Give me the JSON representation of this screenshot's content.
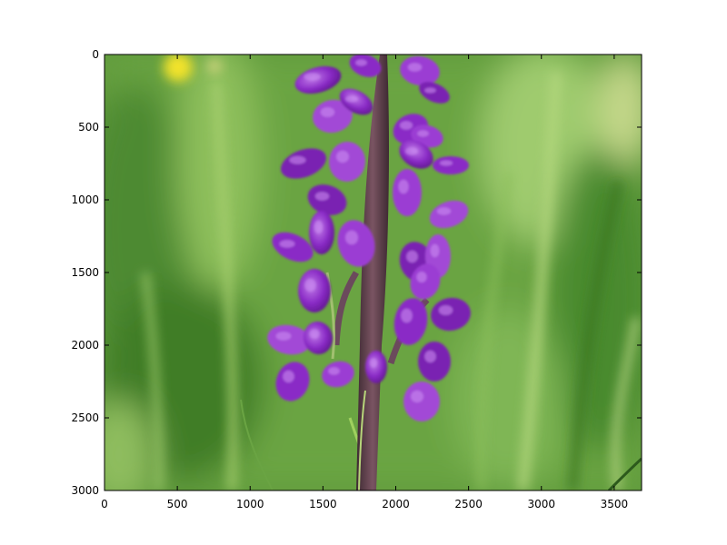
{
  "chart_data": {
    "type": "image",
    "image_subject": "purple-orchid-flower-spike-on-green-grass-background",
    "x_ticks": [
      "0",
      "500",
      "1000",
      "1500",
      "2000",
      "2500",
      "3000",
      "3500"
    ],
    "y_ticks": [
      "0",
      "500",
      "1000",
      "1500",
      "2000",
      "2500",
      "3000"
    ],
    "xlim": [
      0,
      3688
    ],
    "ylim": [
      3000,
      0
    ],
    "y_inverted": true,
    "colors": {
      "background_green": "#5f9a3c",
      "dark_green": "#2f6b22",
      "light_green": "#9cc46a",
      "yellow_flower": "#f1e22a",
      "orchid_purple": "#8a2bc6",
      "orchid_light": "#b566e6",
      "orchid_dark": "#4b1170",
      "stem": "#5b3a4c"
    }
  }
}
